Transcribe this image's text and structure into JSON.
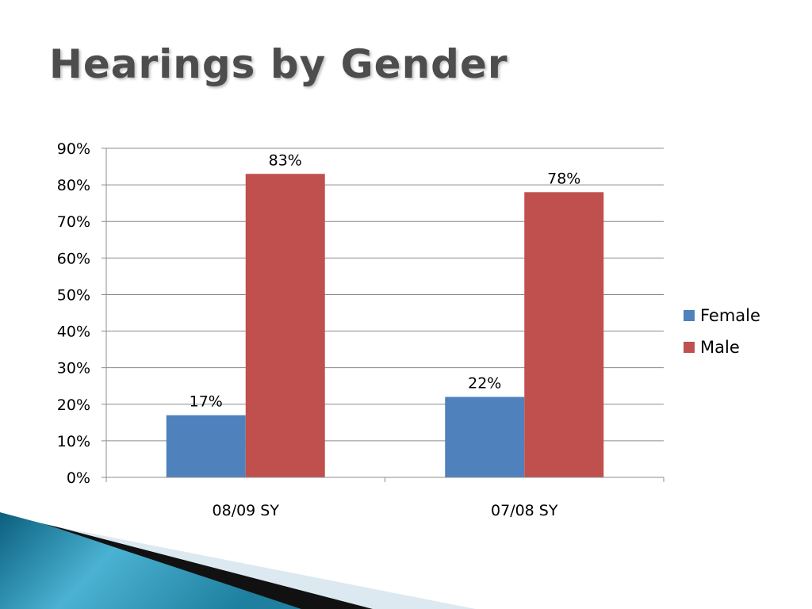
{
  "slide": {
    "title": "Hearings by Gender"
  },
  "chart_data": {
    "type": "bar",
    "categories": [
      "08/09 SY",
      "07/08 SY"
    ],
    "series": [
      {
        "name": "Female",
        "values": [
          17,
          22
        ],
        "color": "#4f81bd"
      },
      {
        "name": "Male",
        "values": [
          83,
          78
        ],
        "color": "#c0504d"
      }
    ],
    "data_labels": {
      "Female": [
        "17%",
        "22%"
      ],
      "Male": [
        "83%",
        "78%"
      ]
    },
    "title": "",
    "xlabel": "",
    "ylabel": "",
    "ylim": [
      0,
      90
    ],
    "yticks": [
      0,
      10,
      20,
      30,
      40,
      50,
      60,
      70,
      80,
      90
    ],
    "ytick_labels": [
      "0%",
      "10%",
      "20%",
      "30%",
      "40%",
      "50%",
      "60%",
      "70%",
      "80%",
      "90%"
    ],
    "grid": true,
    "legend_position": "right"
  }
}
